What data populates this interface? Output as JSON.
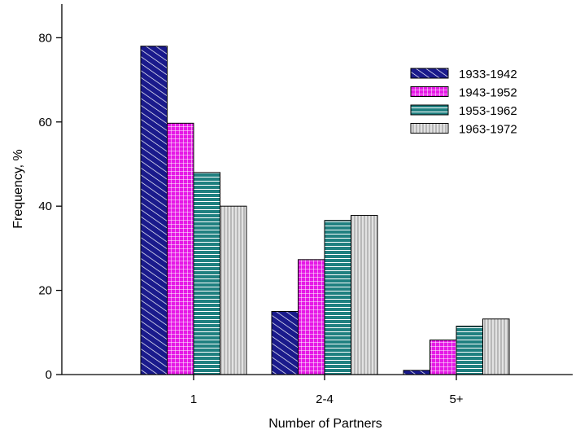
{
  "chart_data": {
    "type": "bar",
    "title": "",
    "xlabel": "Number of Partners",
    "ylabel": "Frequency, %",
    "categories": [
      "1",
      "2-4",
      "5+"
    ],
    "ylim": [
      0,
      88
    ],
    "yticks": [
      0,
      20,
      40,
      60,
      80
    ],
    "grid": false,
    "legend_position": "top-right",
    "series": [
      {
        "name": "1933-1942",
        "values": [
          78,
          15,
          1
        ],
        "color": "#1a1a8c",
        "pattern": "diagonal-hatch"
      },
      {
        "name": "1943-1952",
        "values": [
          59.7,
          27.3,
          8.2
        ],
        "color": "#e619e6",
        "pattern": "crosshatch"
      },
      {
        "name": "1953-1962",
        "values": [
          48,
          36.6,
          11.5
        ],
        "color": "#1f8080",
        "pattern": "horizontal-lines"
      },
      {
        "name": "1963-1972",
        "values": [
          40,
          37.8,
          13.2
        ],
        "color": "#b8b8b8",
        "pattern": "vertical-lines"
      }
    ]
  }
}
